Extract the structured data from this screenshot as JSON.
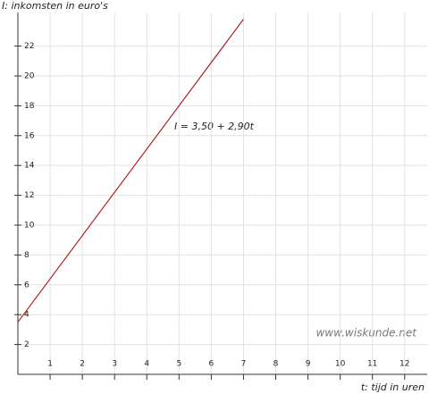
{
  "chart_data": {
    "type": "line",
    "y_label": "I: inkomsten in euro's",
    "x_label": "t: tijd in uren",
    "annotation": "I = 3,50 + 2,90t",
    "watermark": "www.wiskunde.net",
    "x": [
      0,
      7
    ],
    "series": [
      {
        "name": "I = 3,50 + 2,90t",
        "color": "#b22222",
        "values": [
          3.5,
          23.8
        ]
      }
    ],
    "xlim": [
      0,
      12.7
    ],
    "ylim": [
      0,
      24.25
    ],
    "xticks": [
      1,
      2,
      3,
      4,
      5,
      6,
      7,
      8,
      9,
      10,
      11,
      12
    ],
    "yticks": [
      2,
      4,
      6,
      8,
      10,
      12,
      14,
      16,
      18,
      20,
      22
    ],
    "grid": true
  }
}
